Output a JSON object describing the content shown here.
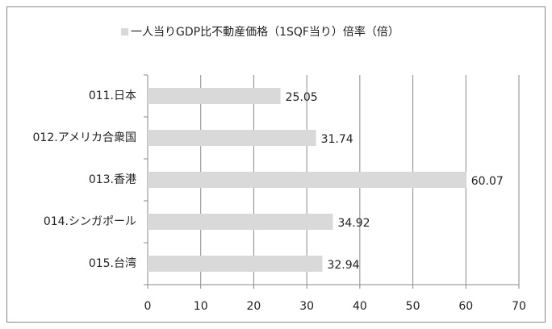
{
  "chart_data": {
    "type": "bar",
    "orientation": "horizontal",
    "categories": [
      "011.日本",
      "012.アメリカ合衆国",
      "013.香港",
      "014.シンガポール",
      "015.台湾"
    ],
    "series": [
      {
        "name": "一人当りGDP比不動産価格（1SQF当り）倍率（倍）",
        "color": "#d9d9d9",
        "values": [
          25.05,
          31.74,
          60.07,
          34.92,
          32.94
        ]
      }
    ],
    "xlim": [
      0,
      70
    ],
    "xticks": [
      0,
      10,
      20,
      30,
      40,
      50,
      60,
      70
    ],
    "grid": true,
    "legend": "top"
  }
}
